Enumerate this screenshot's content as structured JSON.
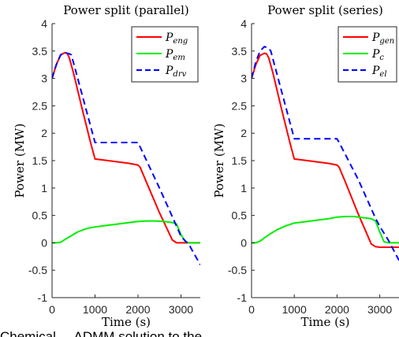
{
  "caption": "Chemical ... ADMM solution to the ...",
  "chart_data": [
    {
      "type": "line",
      "title": "Power split (parallel)",
      "xlabel": "Time (s)",
      "ylabel": "Power (MW)",
      "xlim": [
        0,
        3450
      ],
      "ylim": [
        -1,
        4
      ],
      "xticks": [
        0,
        1000,
        2000,
        3000
      ],
      "yticks": [
        -1,
        -0.5,
        0,
        0.5,
        1,
        1.5,
        2,
        2.5,
        3,
        3.5,
        4
      ],
      "ytick_labels": [
        "-1",
        "-0.5",
        "0",
        "0.5",
        "1",
        "1.5",
        "2",
        "2.5",
        "3",
        "3.5",
        "4"
      ],
      "grid": false,
      "legend_position": "top-right",
      "series": [
        {
          "name": "P_eng",
          "label_base": "P",
          "label_sub": "eng",
          "color": "#ff0000",
          "dash": "solid",
          "x": [
            0,
            100,
            200,
            300,
            350,
            400,
            500,
            700,
            900,
            1000,
            1200,
            1500,
            1800,
            2000,
            2050,
            2200,
            2500,
            2800,
            2900,
            3000,
            3200,
            3450
          ],
          "y": [
            3.0,
            3.25,
            3.43,
            3.47,
            3.46,
            3.38,
            3.1,
            2.45,
            1.82,
            1.53,
            1.51,
            1.48,
            1.45,
            1.42,
            1.38,
            1.1,
            0.55,
            0.05,
            0.0,
            0.0,
            0.0,
            0.0
          ]
        },
        {
          "name": "P_em",
          "label_base": "P",
          "label_sub": "em",
          "color": "#00ee00",
          "dash": "solid",
          "x": [
            0,
            100,
            200,
            300,
            450,
            600,
            800,
            1000,
            1200,
            1500,
            1800,
            2000,
            2200,
            2400,
            2600,
            2800,
            2900,
            3000,
            3100,
            3200,
            3450
          ],
          "y": [
            0.0,
            0.0,
            0.01,
            0.06,
            0.13,
            0.2,
            0.26,
            0.29,
            0.31,
            0.34,
            0.37,
            0.39,
            0.4,
            0.4,
            0.39,
            0.37,
            0.34,
            0.15,
            0.02,
            0.0,
            0.0
          ]
        },
        {
          "name": "P_drv",
          "label_base": "P",
          "label_sub": "drv",
          "color": "#0000ff",
          "dash": "dashed",
          "x": [
            0,
            100,
            200,
            300,
            400,
            450,
            1000,
            1600,
            2000,
            2050,
            2500,
            2900,
            3000,
            3200,
            3450
          ],
          "y": [
            3.0,
            3.25,
            3.43,
            3.47,
            3.45,
            3.43,
            1.83,
            1.83,
            1.83,
            1.75,
            1.0,
            0.3,
            0.12,
            -0.05,
            -0.4
          ]
        }
      ]
    },
    {
      "type": "line",
      "title": "Power split (series)",
      "xlabel": "Time (s)",
      "ylabel": "Power (MW)",
      "xlim": [
        0,
        3450
      ],
      "ylim": [
        -1,
        4
      ],
      "xticks": [
        0,
        1000,
        2000,
        3000
      ],
      "yticks": [
        -1,
        -0.5,
        0,
        0.5,
        1,
        1.5,
        2,
        2.5,
        3,
        3.5,
        4
      ],
      "ytick_labels": [
        "-1",
        "-0.5",
        "0",
        "0.5",
        "1",
        "1.5",
        "2",
        "2.5",
        "3",
        "3.5",
        "4"
      ],
      "grid": false,
      "legend_position": "top-right",
      "series": [
        {
          "name": "P_gen",
          "label_base": "P",
          "label_sub": "gen",
          "color": "#ff0000",
          "dash": "solid",
          "x": [
            0,
            100,
            200,
            300,
            350,
            400,
            500,
            700,
            900,
            1000,
            1200,
            1500,
            1800,
            2000,
            2050,
            2200,
            2500,
            2800,
            2900,
            3000,
            3200,
            3450
          ],
          "y": [
            3.0,
            3.25,
            3.42,
            3.46,
            3.45,
            3.38,
            3.1,
            2.45,
            1.82,
            1.53,
            1.51,
            1.48,
            1.45,
            1.42,
            1.38,
            1.1,
            0.52,
            -0.02,
            -0.07,
            -0.08,
            -0.08,
            -0.08
          ]
        },
        {
          "name": "P_c",
          "label_base": "P",
          "label_sub": "c",
          "color": "#00ee00",
          "dash": "solid",
          "x": [
            0,
            100,
            200,
            300,
            450,
            600,
            800,
            1000,
            1200,
            1500,
            1800,
            2000,
            2200,
            2400,
            2600,
            2800,
            2900,
            3000,
            3100,
            3200,
            3450
          ],
          "y": [
            0.0,
            0.0,
            0.03,
            0.09,
            0.17,
            0.24,
            0.31,
            0.36,
            0.38,
            0.41,
            0.44,
            0.47,
            0.48,
            0.48,
            0.46,
            0.44,
            0.4,
            0.2,
            0.02,
            0.0,
            0.0
          ]
        },
        {
          "name": "P_el",
          "label_base": "P",
          "label_sub": "el",
          "color": "#0000ff",
          "dash": "dashed",
          "x": [
            0,
            100,
            200,
            300,
            400,
            450,
            1000,
            1600,
            2000,
            2050,
            2500,
            2900,
            3000,
            3200,
            3450
          ],
          "y": [
            3.0,
            3.3,
            3.5,
            3.58,
            3.55,
            3.5,
            1.9,
            1.9,
            1.9,
            1.83,
            1.15,
            0.45,
            0.3,
            0.05,
            -0.32
          ]
        }
      ]
    }
  ]
}
